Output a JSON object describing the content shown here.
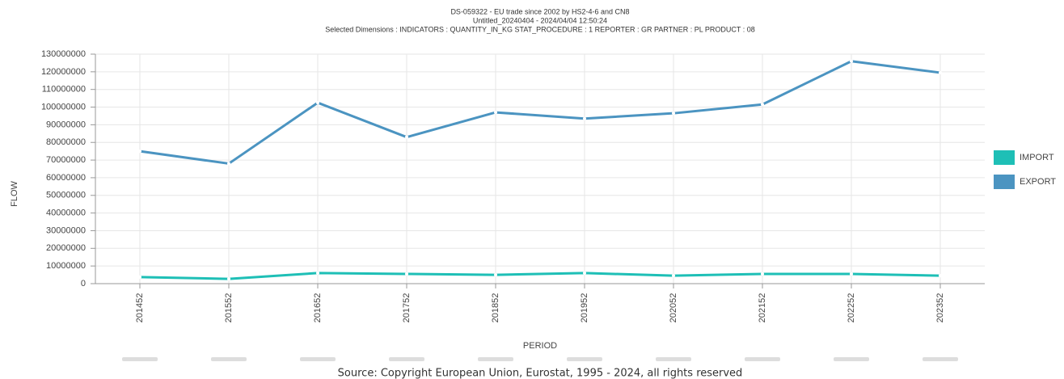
{
  "chart_data": {
    "type": "line",
    "title": "DS-059322 - EU trade since 2002 by HS2-4-6 and CN8",
    "subtitle": "Untitled_20240404 - 2024/04/04 12:50:24",
    "dimensions": "Selected Dimensions : INDICATORS : QUANTITY_IN_KG   STAT_PROCEDURE : 1   REPORTER : GR   PARTNER : PL   PRODUCT : 08",
    "x_label": "PERIOD",
    "y_label": "FLOW",
    "source": "Source: Copyright European Union, Eurostat, 1995 - 2024, all rights reserved",
    "categories": [
      "201452",
      "201552",
      "201652",
      "201752",
      "201852",
      "201952",
      "202052",
      "202152",
      "202252",
      "202352"
    ],
    "series": [
      {
        "name": "IMPORT",
        "color": "#1ebfb6",
        "values": [
          3700000,
          2700000,
          6000000,
          5500000,
          5000000,
          6000000,
          4500000,
          5500000,
          5500000,
          4500000
        ]
      },
      {
        "name": "EXPORT",
        "color": "#4b94c1",
        "values": [
          75000000,
          68000000,
          102500000,
          83000000,
          97000000,
          93500000,
          96500000,
          101500000,
          126000000,
          119500000
        ]
      }
    ],
    "ylim": [
      0,
      130000000
    ],
    "yticks": [
      0,
      10000000,
      20000000,
      30000000,
      40000000,
      50000000,
      60000000,
      70000000,
      80000000,
      90000000,
      100000000,
      110000000,
      120000000,
      130000000
    ],
    "grid": true,
    "legend": "right"
  }
}
